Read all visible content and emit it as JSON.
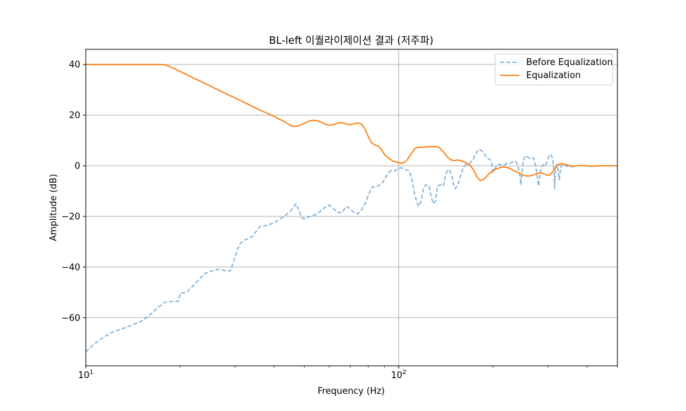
{
  "chart_data": {
    "type": "line",
    "title": "BL-left 이퀄라이제이션 결과 (저주파)",
    "xlabel": "Frequency (Hz)",
    "ylabel": "Amplitude (dB)",
    "xscale": "log",
    "xlim": [
      10,
      500
    ],
    "ylim": [
      -79,
      46
    ],
    "grid": true,
    "legend_position": "top-right",
    "x_ticks": [
      {
        "value": 10,
        "base": "10",
        "exp": "1"
      },
      {
        "value": 100,
        "base": "10",
        "exp": "2"
      }
    ],
    "y_ticks": [
      {
        "value": 40,
        "label": "40"
      },
      {
        "value": 20,
        "label": "20"
      },
      {
        "value": 0,
        "label": "0"
      },
      {
        "value": -20,
        "label": "−20"
      },
      {
        "value": -40,
        "label": "−40"
      },
      {
        "value": -60,
        "label": "−60"
      }
    ],
    "series": [
      {
        "name": "Before Equalization",
        "color": "#7fb0d8",
        "style": "dashed",
        "points": [
          [
            10.0,
            -73.5
          ],
          [
            10.5,
            -71.0
          ],
          [
            11.0,
            -69.0
          ],
          [
            11.5,
            -67.5
          ],
          [
            12.0,
            -66.0
          ],
          [
            13.0,
            -64.5
          ],
          [
            14.0,
            -63.0
          ],
          [
            15.0,
            -61.5
          ],
          [
            16.0,
            -59.0
          ],
          [
            17.0,
            -56.0
          ],
          [
            18.0,
            -53.8
          ],
          [
            19.0,
            -53.6
          ],
          [
            19.8,
            -53.5
          ],
          [
            20.0,
            -50.5
          ],
          [
            21.0,
            -50.0
          ],
          [
            22.0,
            -47.5
          ],
          [
            23.0,
            -45.0
          ],
          [
            24.0,
            -42.5
          ],
          [
            25.0,
            -41.8
          ],
          [
            26.0,
            -41.0
          ],
          [
            27.0,
            -41.0
          ],
          [
            28.0,
            -41.5
          ],
          [
            29.0,
            -41.5
          ],
          [
            30.0,
            -36.0
          ],
          [
            31.0,
            -31.0
          ],
          [
            32.0,
            -29.5
          ],
          [
            34.0,
            -28.0
          ],
          [
            36.0,
            -24.0
          ],
          [
            38.0,
            -23.5
          ],
          [
            40.0,
            -22.5
          ],
          [
            43.0,
            -20.0
          ],
          [
            45.0,
            -18.0
          ],
          [
            47.0,
            -15.0
          ],
          [
            49.0,
            -20.5
          ],
          [
            50.0,
            -21.0
          ],
          [
            52.0,
            -20.0
          ],
          [
            55.0,
            -19.0
          ],
          [
            58.0,
            -16.5
          ],
          [
            60.0,
            -15.5
          ],
          [
            62.0,
            -17.0
          ],
          [
            64.0,
            -18.5
          ],
          [
            66.0,
            -18.5
          ],
          [
            68.0,
            -16.0
          ],
          [
            70.0,
            -17.0
          ],
          [
            72.0,
            -18.5
          ],
          [
            74.0,
            -19.0
          ],
          [
            76.0,
            -17.5
          ],
          [
            78.0,
            -15.0
          ],
          [
            82.0,
            -8.5
          ],
          [
            86.0,
            -8.0
          ],
          [
            89.0,
            -6.5
          ],
          [
            92.0,
            -3.5
          ],
          [
            94.0,
            -2.0
          ],
          [
            97.0,
            -2.0
          ],
          [
            100.0,
            -1.0
          ],
          [
            102.0,
            -0.8
          ],
          [
            105.0,
            -1.5
          ],
          [
            108.0,
            -2.0
          ],
          [
            110.0,
            -5.0
          ],
          [
            112.0,
            -10.0
          ],
          [
            114.0,
            -14.0
          ],
          [
            116.0,
            -16.0
          ],
          [
            118.0,
            -14.0
          ],
          [
            120.0,
            -9.0
          ],
          [
            122.0,
            -7.5
          ],
          [
            125.0,
            -8.0
          ],
          [
            127.0,
            -12.0
          ],
          [
            129.0,
            -15.0
          ],
          [
            131.0,
            -14.0
          ],
          [
            133.0,
            -8.0
          ],
          [
            136.0,
            -7.5
          ],
          [
            139.0,
            -8.0
          ],
          [
            141.0,
            -4.0
          ],
          [
            143.0,
            -2.0
          ],
          [
            145.0,
            -1.5
          ],
          [
            148.0,
            -4.0
          ],
          [
            150.0,
            -8.0
          ],
          [
            152.0,
            -9.0
          ],
          [
            155.0,
            -7.0
          ],
          [
            158.0,
            -3.5
          ],
          [
            161.0,
            -0.5
          ],
          [
            164.0,
            0.5
          ],
          [
            168.0,
            1.0
          ],
          [
            172.0,
            2.0
          ],
          [
            176.0,
            4.5
          ],
          [
            180.0,
            6.5
          ],
          [
            184.0,
            6.0
          ],
          [
            188.0,
            4.5
          ],
          [
            192.0,
            3.0
          ],
          [
            196.0,
            2.5
          ],
          [
            198.0,
            1.0
          ],
          [
            200.0,
            -2.5
          ],
          [
            203.0,
            -1.0
          ],
          [
            207.0,
            0.5
          ],
          [
            212.0,
            0.5
          ],
          [
            217.0,
            0.3
          ],
          [
            222.0,
            1.0
          ],
          [
            227.0,
            1.0
          ],
          [
            232.0,
            1.5
          ],
          [
            236.0,
            1.8
          ],
          [
            240.0,
            0.5
          ],
          [
            244.0,
            -4.0
          ],
          [
            246.0,
            -7.5
          ],
          [
            248.0,
            -2.0
          ],
          [
            250.0,
            2.0
          ],
          [
            254.0,
            4.0
          ],
          [
            258.0,
            3.5
          ],
          [
            262.0,
            3.0
          ],
          [
            266.0,
            3.2
          ],
          [
            270.0,
            3.0
          ],
          [
            274.0,
            0.0
          ],
          [
            277.0,
            -4.0
          ],
          [
            280.0,
            -8.0
          ],
          [
            283.0,
            -3.0
          ],
          [
            286.0,
            -0.5
          ],
          [
            290.0,
            0.5
          ],
          [
            294.0,
            0.0
          ],
          [
            298.0,
            1.5
          ],
          [
            302.0,
            4.0
          ],
          [
            306.0,
            4.5
          ],
          [
            310.0,
            3.0
          ],
          [
            313.0,
            -1.0
          ],
          [
            315.0,
            -9.0
          ],
          [
            317.0,
            -1.0
          ],
          [
            320.0,
            0.5
          ],
          [
            323.0,
            -2.0
          ],
          [
            326.0,
            -5.5
          ],
          [
            329.0,
            -1.0
          ],
          [
            333.0,
            0.5
          ],
          [
            340.0,
            0.2
          ],
          [
            350.0,
            -0.5
          ],
          [
            360.0,
            -0.3
          ],
          [
            370.0,
            0.0
          ],
          [
            380.0,
            0.2
          ],
          [
            400.0,
            0.0
          ],
          [
            420.0,
            -0.3
          ],
          [
            440.0,
            0.2
          ],
          [
            460.0,
            0.0
          ],
          [
            480.0,
            0.1
          ],
          [
            500.0,
            0.0
          ]
        ]
      },
      {
        "name": "Equalization",
        "color": "#ff7f0e",
        "style": "solid",
        "points": [
          [
            10.0,
            40.0
          ],
          [
            12.0,
            40.0
          ],
          [
            14.0,
            40.0
          ],
          [
            16.0,
            40.0
          ],
          [
            17.5,
            40.0
          ],
          [
            18.0,
            39.8
          ],
          [
            18.5,
            39.3
          ],
          [
            20.0,
            37.3
          ],
          [
            22.0,
            34.8
          ],
          [
            25.0,
            31.5
          ],
          [
            28.0,
            28.5
          ],
          [
            30.0,
            26.8
          ],
          [
            33.0,
            24.3
          ],
          [
            36.0,
            22.0
          ],
          [
            40.0,
            19.5
          ],
          [
            43.0,
            17.5
          ],
          [
            45.0,
            16.0
          ],
          [
            46.5,
            15.5
          ],
          [
            48.0,
            15.8
          ],
          [
            50.0,
            16.8
          ],
          [
            52.0,
            17.8
          ],
          [
            54.0,
            18.0
          ],
          [
            56.0,
            17.5
          ],
          [
            58.0,
            16.5
          ],
          [
            60.0,
            16.0
          ],
          [
            62.0,
            16.3
          ],
          [
            64.0,
            16.9
          ],
          [
            66.0,
            17.0
          ],
          [
            68.0,
            16.5
          ],
          [
            70.0,
            16.2
          ],
          [
            72.0,
            16.6
          ],
          [
            74.0,
            16.9
          ],
          [
            76.0,
            16.5
          ],
          [
            78.0,
            14.5
          ],
          [
            80.0,
            11.5
          ],
          [
            82.0,
            9.0
          ],
          [
            84.0,
            8.2
          ],
          [
            86.0,
            7.8
          ],
          [
            88.0,
            6.5
          ],
          [
            90.0,
            4.5
          ],
          [
            93.0,
            3.0
          ],
          [
            96.0,
            1.8
          ],
          [
            100.0,
            1.2
          ],
          [
            103.0,
            1.0
          ],
          [
            106.0,
            2.0
          ],
          [
            110.0,
            5.0
          ],
          [
            113.0,
            7.0
          ],
          [
            116.0,
            7.3
          ],
          [
            120.0,
            7.4
          ],
          [
            125.0,
            7.5
          ],
          [
            130.0,
            7.6
          ],
          [
            134.0,
            7.4
          ],
          [
            138.0,
            6.0
          ],
          [
            142.0,
            4.0
          ],
          [
            146.0,
            2.5
          ],
          [
            150.0,
            2.0
          ],
          [
            155.0,
            2.3
          ],
          [
            160.0,
            1.8
          ],
          [
            165.0,
            1.0
          ],
          [
            170.0,
            0.0
          ],
          [
            174.0,
            -2.0
          ],
          [
            178.0,
            -4.5
          ],
          [
            182.0,
            -5.8
          ],
          [
            186.0,
            -5.5
          ],
          [
            190.0,
            -4.5
          ],
          [
            195.0,
            -3.0
          ],
          [
            200.0,
            -2.0
          ],
          [
            206.0,
            -1.2
          ],
          [
            212.0,
            -0.6
          ],
          [
            218.0,
            -0.5
          ],
          [
            224.0,
            -0.8
          ],
          [
            230.0,
            -1.5
          ],
          [
            236.0,
            -2.2
          ],
          [
            242.0,
            -2.8
          ],
          [
            248.0,
            -3.5
          ],
          [
            255.0,
            -4.0
          ],
          [
            262.0,
            -4.0
          ],
          [
            270.0,
            -3.6
          ],
          [
            278.0,
            -3.0
          ],
          [
            285.0,
            -2.8
          ],
          [
            292.0,
            -3.2
          ],
          [
            298.0,
            -3.8
          ],
          [
            304.0,
            -3.6
          ],
          [
            310.0,
            -2.5
          ],
          [
            316.0,
            -1.0
          ],
          [
            322.0,
            0.2
          ],
          [
            328.0,
            0.8
          ],
          [
            334.0,
            0.8
          ],
          [
            340.0,
            0.5
          ],
          [
            350.0,
            0.2
          ],
          [
            360.0,
            -0.2
          ],
          [
            375.0,
            0.1
          ],
          [
            390.0,
            0.1
          ],
          [
            410.0,
            -0.1
          ],
          [
            430.0,
            0.0
          ],
          [
            450.0,
            0.0
          ],
          [
            480.0,
            0.0
          ],
          [
            500.0,
            0.0
          ]
        ]
      }
    ]
  }
}
